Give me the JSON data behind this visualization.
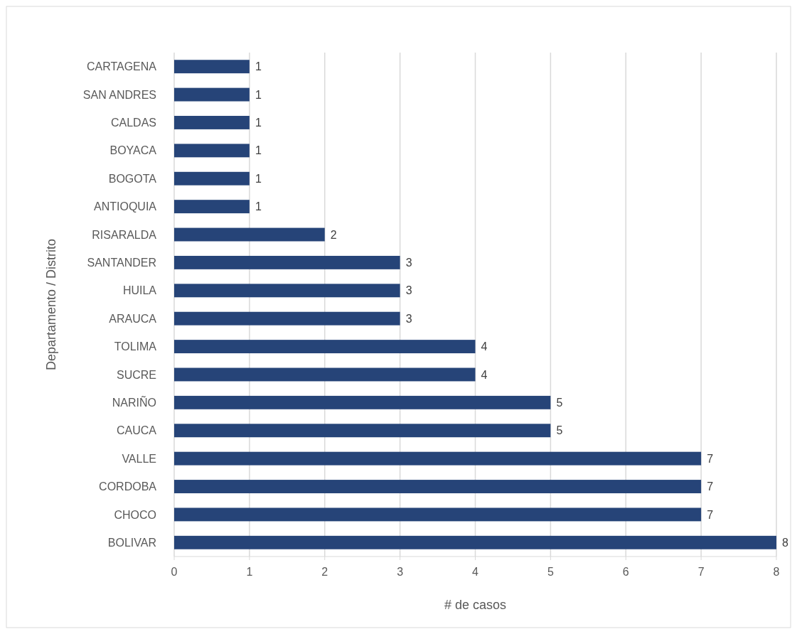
{
  "chart_data": {
    "type": "bar",
    "orientation": "horizontal",
    "xlabel": "# de casos",
    "ylabel": "Departamento / Distrito",
    "categories": [
      "CARTAGENA",
      "SAN ANDRES",
      "CALDAS",
      "BOYACA",
      "BOGOTA",
      "ANTIOQUIA",
      "RISARALDA",
      "SANTANDER",
      "HUILA",
      "ARAUCA",
      "TOLIMA",
      "SUCRE",
      "NARIÑO",
      "CAUCA",
      "VALLE",
      "CORDOBA",
      "CHOCO",
      "BOLIVAR"
    ],
    "values": [
      1,
      1,
      1,
      1,
      1,
      1,
      2,
      3,
      3,
      3,
      4,
      4,
      5,
      5,
      7,
      7,
      7,
      8
    ],
    "color": "#264478",
    "xlim": [
      0,
      8
    ],
    "xticks": [
      0,
      1,
      2,
      3,
      4,
      5,
      6,
      7,
      8
    ],
    "grid": "x",
    "data_labels": true
  }
}
